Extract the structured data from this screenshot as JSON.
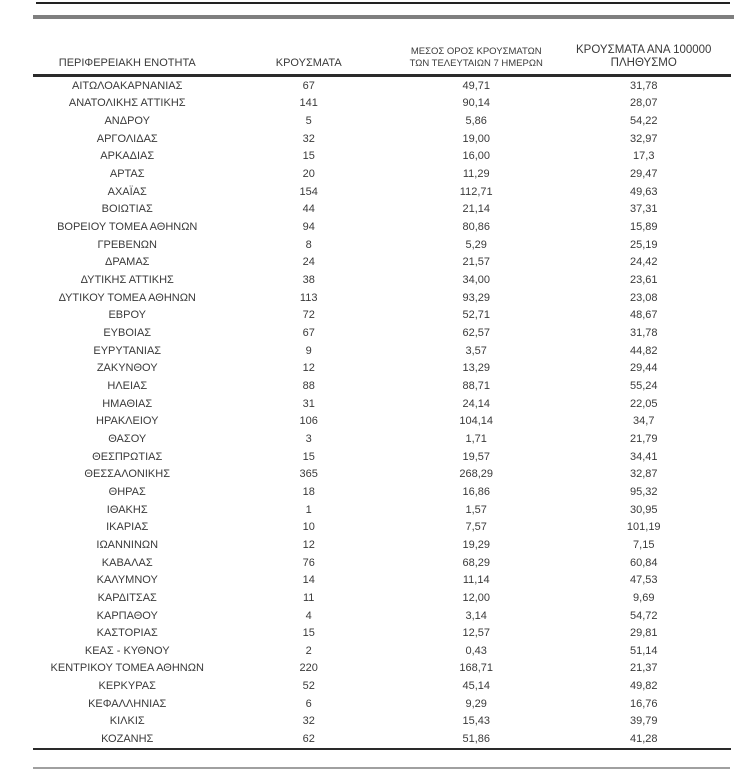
{
  "colors": {
    "text": "#3a3a3a",
    "rule_dark": "#222222",
    "rule_gray": "#7f7f7f",
    "rule_light": "#a0a0a0",
    "background": "#ffffff"
  },
  "table": {
    "headers": [
      "ΠΕΡΙΦΕΡΕΙΑΚΗ ΕΝΟΤΗΤΑ",
      "ΚΡΟΥΣΜΑΤΑ",
      "ΜΕΣΟΣ ΟΡΟΣ ΚΡΟΥΣΜΑΤΩΝ\nΤΩΝ ΤΕΛΕΥΤΑΙΩΝ 7 ΗΜΕΡΩΝ",
      "ΚΡΟΥΣΜΑΤΑ ΑΝΑ 100000\nΠΛΗΘΥΣΜΟ"
    ],
    "rows": [
      [
        "ΑΙΤΩΛΟΑΚΑΡΝΑΝΙΑΣ",
        "67",
        "49,71",
        "31,78"
      ],
      [
        "ΑΝΑΤΟΛΙΚΗΣ ΑΤΤΙΚΗΣ",
        "141",
        "90,14",
        "28,07"
      ],
      [
        "ΑΝΔΡΟΥ",
        "5",
        "5,86",
        "54,22"
      ],
      [
        "ΑΡΓΟΛΙΔΑΣ",
        "32",
        "19,00",
        "32,97"
      ],
      [
        "ΑΡΚΑΔΙΑΣ",
        "15",
        "16,00",
        "17,3"
      ],
      [
        "ΑΡΤΑΣ",
        "20",
        "11,29",
        "29,47"
      ],
      [
        "ΑΧΑΪΑΣ",
        "154",
        "112,71",
        "49,63"
      ],
      [
        "ΒΟΙΩΤΙΑΣ",
        "44",
        "21,14",
        "37,31"
      ],
      [
        "ΒΟΡΕΙΟΥ ΤΟΜΕΑ ΑΘΗΝΩΝ",
        "94",
        "80,86",
        "15,89"
      ],
      [
        "ΓΡΕΒΕΝΩΝ",
        "8",
        "5,29",
        "25,19"
      ],
      [
        "ΔΡΑΜΑΣ",
        "24",
        "21,57",
        "24,42"
      ],
      [
        "ΔΥΤΙΚΗΣ ΑΤΤΙΚΗΣ",
        "38",
        "34,00",
        "23,61"
      ],
      [
        "ΔΥΤΙΚΟΥ ΤΟΜΕΑ ΑΘΗΝΩΝ",
        "113",
        "93,29",
        "23,08"
      ],
      [
        "ΕΒΡΟΥ",
        "72",
        "52,71",
        "48,67"
      ],
      [
        "ΕΥΒΟΙΑΣ",
        "67",
        "62,57",
        "31,78"
      ],
      [
        "ΕΥΡΥΤΑΝΙΑΣ",
        "9",
        "3,57",
        "44,82"
      ],
      [
        "ΖΑΚΥΝΘΟΥ",
        "12",
        "13,29",
        "29,44"
      ],
      [
        "ΗΛΕΙΑΣ",
        "88",
        "88,71",
        "55,24"
      ],
      [
        "ΗΜΑΘΙΑΣ",
        "31",
        "24,14",
        "22,05"
      ],
      [
        "ΗΡΑΚΛΕΙΟΥ",
        "106",
        "104,14",
        "34,7"
      ],
      [
        "ΘΑΣΟΥ",
        "3",
        "1,71",
        "21,79"
      ],
      [
        "ΘΕΣΠΡΩΤΙΑΣ",
        "15",
        "19,57",
        "34,41"
      ],
      [
        "ΘΕΣΣΑΛΟΝΙΚΗΣ",
        "365",
        "268,29",
        "32,87"
      ],
      [
        "ΘΗΡΑΣ",
        "18",
        "16,86",
        "95,32"
      ],
      [
        "ΙΘΑΚΗΣ",
        "1",
        "1,57",
        "30,95"
      ],
      [
        "ΙΚΑΡΙΑΣ",
        "10",
        "7,57",
        "101,19"
      ],
      [
        "ΙΩΑΝΝΙΝΩΝ",
        "12",
        "19,29",
        "7,15"
      ],
      [
        "ΚΑΒΑΛΑΣ",
        "76",
        "68,29",
        "60,84"
      ],
      [
        "ΚΑΛΥΜΝΟΥ",
        "14",
        "11,14",
        "47,53"
      ],
      [
        "ΚΑΡΔΙΤΣΑΣ",
        "11",
        "12,00",
        "9,69"
      ],
      [
        "ΚΑΡΠΑΘΟΥ",
        "4",
        "3,14",
        "54,72"
      ],
      [
        "ΚΑΣΤΟΡΙΑΣ",
        "15",
        "12,57",
        "29,81"
      ],
      [
        "ΚΕΑΣ - ΚΥΘΝΟΥ",
        "2",
        "0,43",
        "51,14"
      ],
      [
        "ΚΕΝΤΡΙΚΟΥ ΤΟΜΕΑ ΑΘΗΝΩΝ",
        "220",
        "168,71",
        "21,37"
      ],
      [
        "ΚΕΡΚΥΡΑΣ",
        "52",
        "45,14",
        "49,82"
      ],
      [
        "ΚΕΦΑΛΛΗΝΙΑΣ",
        "6",
        "9,29",
        "16,76"
      ],
      [
        "ΚΙΛΚΙΣ",
        "32",
        "15,43",
        "39,79"
      ],
      [
        "ΚΟΖΑΝΗΣ",
        "62",
        "51,86",
        "41,28"
      ]
    ]
  }
}
